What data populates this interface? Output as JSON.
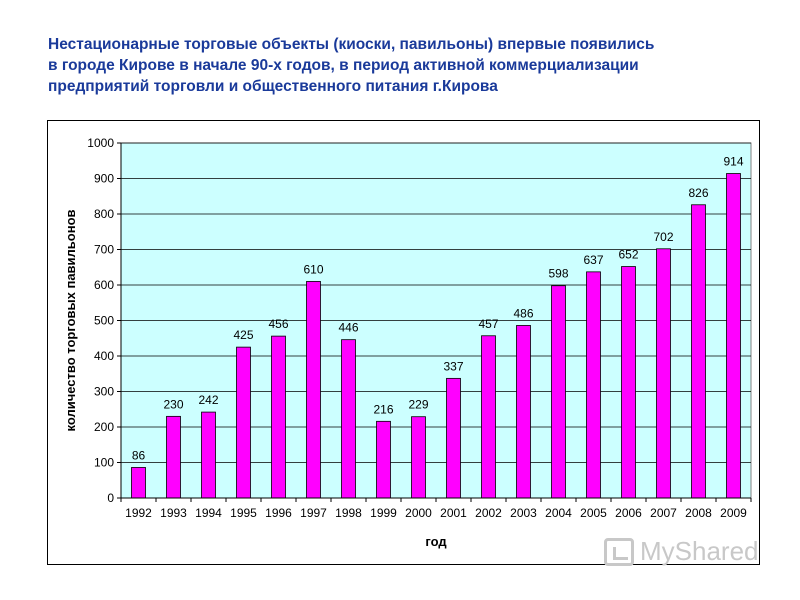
{
  "heading": {
    "line1": "Нестационарные торговые объекты (киоски, павильоны) впервые появились",
    "line2": "в городе Кирове в начале 90-х годов, в период активной коммерциализации",
    "line3": "предприятий торговли и общественного питания г.Кирова"
  },
  "watermark": {
    "text": "MyShared",
    "icon": "presentation-board-icon"
  },
  "colors": {
    "plot_bg": "#ccffff",
    "bar_fill": "#ff00ff",
    "bar_stroke": "#000000",
    "heading": "#1a3a9a"
  },
  "chart_data": {
    "type": "bar",
    "title": "",
    "xlabel": "год",
    "ylabel": "количество торговых павильонов",
    "categories": [
      "1992",
      "1993",
      "1994",
      "1995",
      "1996",
      "1997",
      "1998",
      "1999",
      "2000",
      "2001",
      "2002",
      "2003",
      "2004",
      "2005",
      "2006",
      "2007",
      "2008",
      "2009"
    ],
    "values": [
      86,
      230,
      242,
      425,
      456,
      610,
      446,
      216,
      229,
      337,
      457,
      486,
      598,
      637,
      652,
      702,
      826,
      914
    ],
    "ylim": [
      0,
      1000
    ],
    "yticks": [
      0,
      100,
      200,
      300,
      400,
      500,
      600,
      700,
      800,
      900,
      1000
    ],
    "grid": true,
    "legend": "none",
    "data_labels": true
  }
}
